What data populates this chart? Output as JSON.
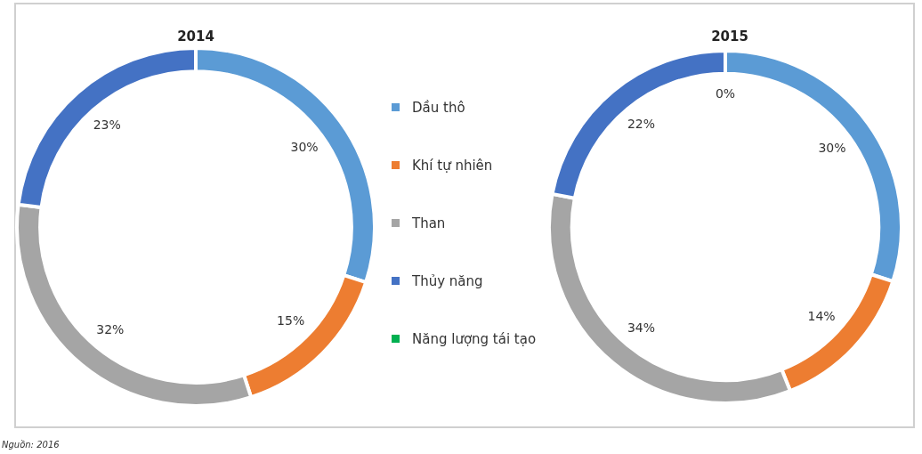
{
  "chart_data": [
    {
      "type": "donut",
      "title": "2014",
      "categories": [
        "Dầu thô",
        "Khí tự nhiên",
        "Than",
        "Thủy năng",
        "Năng lượng tái tạo"
      ],
      "values": [
        30,
        15,
        32,
        23,
        0
      ],
      "colors": [
        "#5b9bd5",
        "#ed7d31",
        "#a5a5a5",
        "#4472c4",
        "#00b050"
      ],
      "value_labels": [
        "30%",
        "15%",
        "32%",
        "23%",
        null
      ],
      "legend": "right",
      "annotations": [
        "Nguồn: 2016"
      ]
    },
    {
      "type": "donut",
      "title": "2015",
      "values": [
        30,
        14,
        34,
        22,
        0
      ],
      "colors": [
        "#5b9bd5",
        "#ed7d31",
        "#a5a5a5",
        "#4472c4",
        "#00b050"
      ],
      "value_labels": [
        "30%",
        "14%",
        "34%",
        "22%",
        "0%"
      ]
    }
  ]
}
